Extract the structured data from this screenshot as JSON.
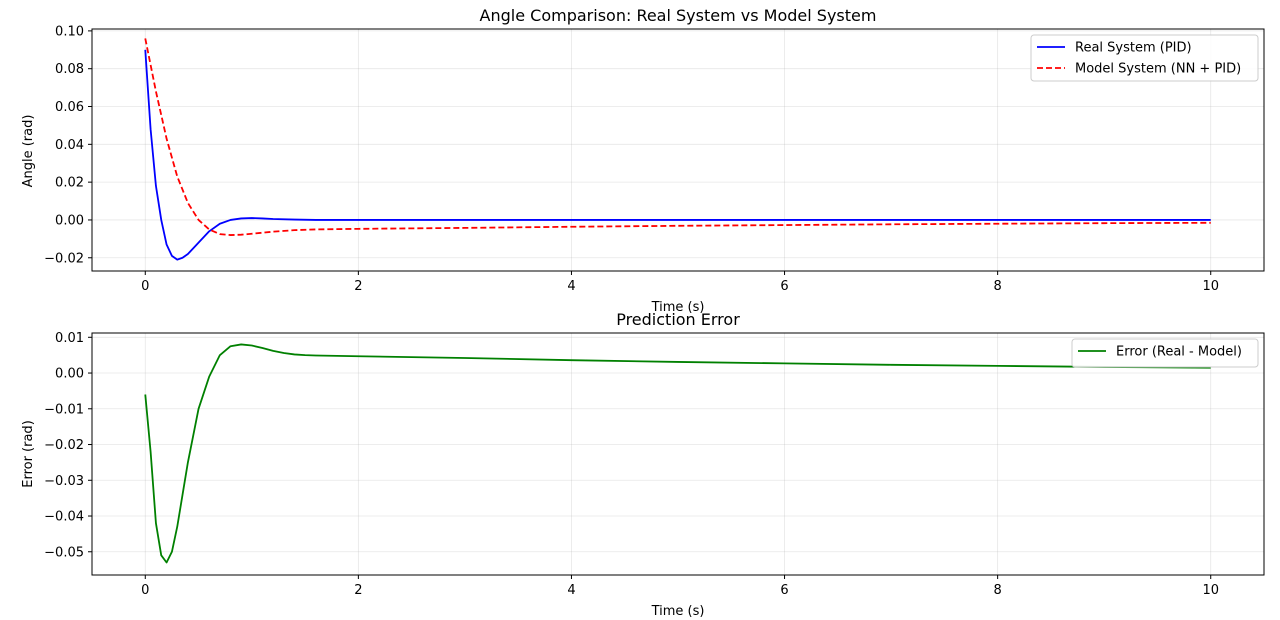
{
  "chart_data": [
    {
      "type": "line",
      "title": "Angle Comparison: Real System vs Model System",
      "xlabel": "Time (s)",
      "ylabel": "Angle (rad)",
      "xlim": [
        -0.5,
        10.5
      ],
      "ylim": [
        -0.027,
        0.101
      ],
      "xticks": [
        0,
        2,
        4,
        6,
        8,
        10
      ],
      "xtick_labels": [
        "0",
        "2",
        "4",
        "6",
        "8",
        "10"
      ],
      "yticks": [
        -0.02,
        0.0,
        0.02,
        0.04,
        0.06,
        0.08,
        0.1
      ],
      "ytick_labels": [
        "−0.02",
        "0.00",
        "0.02",
        "0.04",
        "0.06",
        "0.08",
        "0.10"
      ],
      "grid": true,
      "legend_position": "upper-right",
      "series": [
        {
          "name": "Real System (PID)",
          "color": "#0000ff",
          "dash": "solid",
          "x": [
            0,
            0.05,
            0.1,
            0.15,
            0.2,
            0.25,
            0.3,
            0.35,
            0.4,
            0.5,
            0.6,
            0.7,
            0.8,
            0.9,
            1.0,
            1.1,
            1.2,
            1.4,
            1.6,
            2.0,
            3.0,
            4.0,
            5.0,
            6.0,
            7.0,
            8.0,
            9.0,
            10.0
          ],
          "y": [
            0.09,
            0.048,
            0.018,
            0.0,
            -0.013,
            -0.019,
            -0.021,
            -0.02,
            -0.018,
            -0.012,
            -0.006,
            -0.002,
            0.0,
            0.0008,
            0.001,
            0.0008,
            0.0005,
            0.0002,
            0.0,
            0.0,
            0.0,
            0.0,
            0.0,
            0.0,
            0.0,
            0.0,
            0.0,
            0.0
          ]
        },
        {
          "name": "Model System (NN + PID)",
          "color": "#ff0000",
          "dash": "dashed",
          "x": [
            0,
            0.1,
            0.2,
            0.3,
            0.4,
            0.5,
            0.6,
            0.7,
            0.8,
            0.9,
            1.0,
            1.2,
            1.4,
            1.6,
            2.0,
            3.0,
            4.0,
            5.0,
            6.0,
            7.0,
            8.0,
            9.0,
            10.0
          ],
          "y": [
            0.096,
            0.068,
            0.043,
            0.023,
            0.009,
            0.0,
            -0.005,
            -0.0075,
            -0.008,
            -0.0078,
            -0.0073,
            -0.0062,
            -0.0054,
            -0.005,
            -0.0047,
            -0.0042,
            -0.0036,
            -0.0031,
            -0.0027,
            -0.0023,
            -0.002,
            -0.0017,
            -0.0015
          ]
        }
      ]
    },
    {
      "type": "line",
      "title": "Prediction Error",
      "xlabel": "Time (s)",
      "ylabel": "Error (rad)",
      "xlim": [
        -0.5,
        10.5
      ],
      "ylim": [
        -0.0565,
        0.0112
      ],
      "xticks": [
        0,
        2,
        4,
        6,
        8,
        10
      ],
      "xtick_labels": [
        "0",
        "2",
        "4",
        "6",
        "8",
        "10"
      ],
      "yticks": [
        -0.05,
        -0.04,
        -0.03,
        -0.02,
        -0.01,
        0.0,
        0.01
      ],
      "ytick_labels": [
        "−0.05",
        "−0.04",
        "−0.03",
        "−0.02",
        "−0.01",
        "0.00",
        "0.01"
      ],
      "grid": true,
      "legend_position": "upper-right",
      "series": [
        {
          "name": "Error (Real - Model)",
          "color": "#008000",
          "dash": "solid",
          "x": [
            0,
            0.05,
            0.1,
            0.15,
            0.2,
            0.25,
            0.3,
            0.35,
            0.4,
            0.5,
            0.6,
            0.7,
            0.8,
            0.9,
            1.0,
            1.1,
            1.2,
            1.3,
            1.4,
            1.5,
            1.6,
            2.0,
            3.0,
            4.0,
            5.0,
            6.0,
            7.0,
            8.0,
            9.0,
            10.0
          ],
          "y": [
            -0.006,
            -0.022,
            -0.042,
            -0.051,
            -0.053,
            -0.05,
            -0.043,
            -0.034,
            -0.025,
            -0.01,
            -0.001,
            0.005,
            0.0075,
            0.008,
            0.0077,
            0.007,
            0.0062,
            0.0056,
            0.0052,
            0.005,
            0.0049,
            0.0047,
            0.0042,
            0.0036,
            0.0031,
            0.0027,
            0.0023,
            0.002,
            0.0017,
            0.0015
          ]
        }
      ]
    }
  ]
}
